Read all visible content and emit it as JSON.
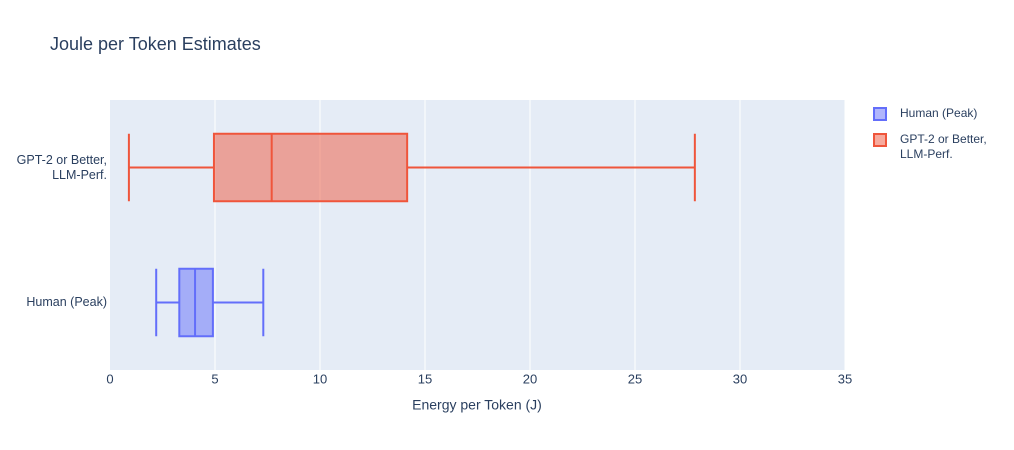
{
  "chart_data": {
    "type": "box",
    "orientation": "h",
    "title": "Joule per Token Estimates",
    "x_label": "Energy per Token (J)",
    "xlim": [
      0,
      35
    ],
    "xticks": [
      0,
      5,
      10,
      15,
      20,
      25,
      30,
      35
    ],
    "grid": true,
    "legend": "upper right",
    "series": [
      {
        "name": "Human (Peak)",
        "color": "#636efa",
        "min": 2.2,
        "q1": 3.3,
        "median": 4.05,
        "q3": 4.9,
        "max": 7.3
      },
      {
        "name": "GPT-2 or Better,\nLLM-Perf.",
        "color": "#ef553b",
        "min": 0.9,
        "q1": 4.95,
        "median": 7.7,
        "q3": 14.15,
        "max": 27.85
      }
    ]
  }
}
